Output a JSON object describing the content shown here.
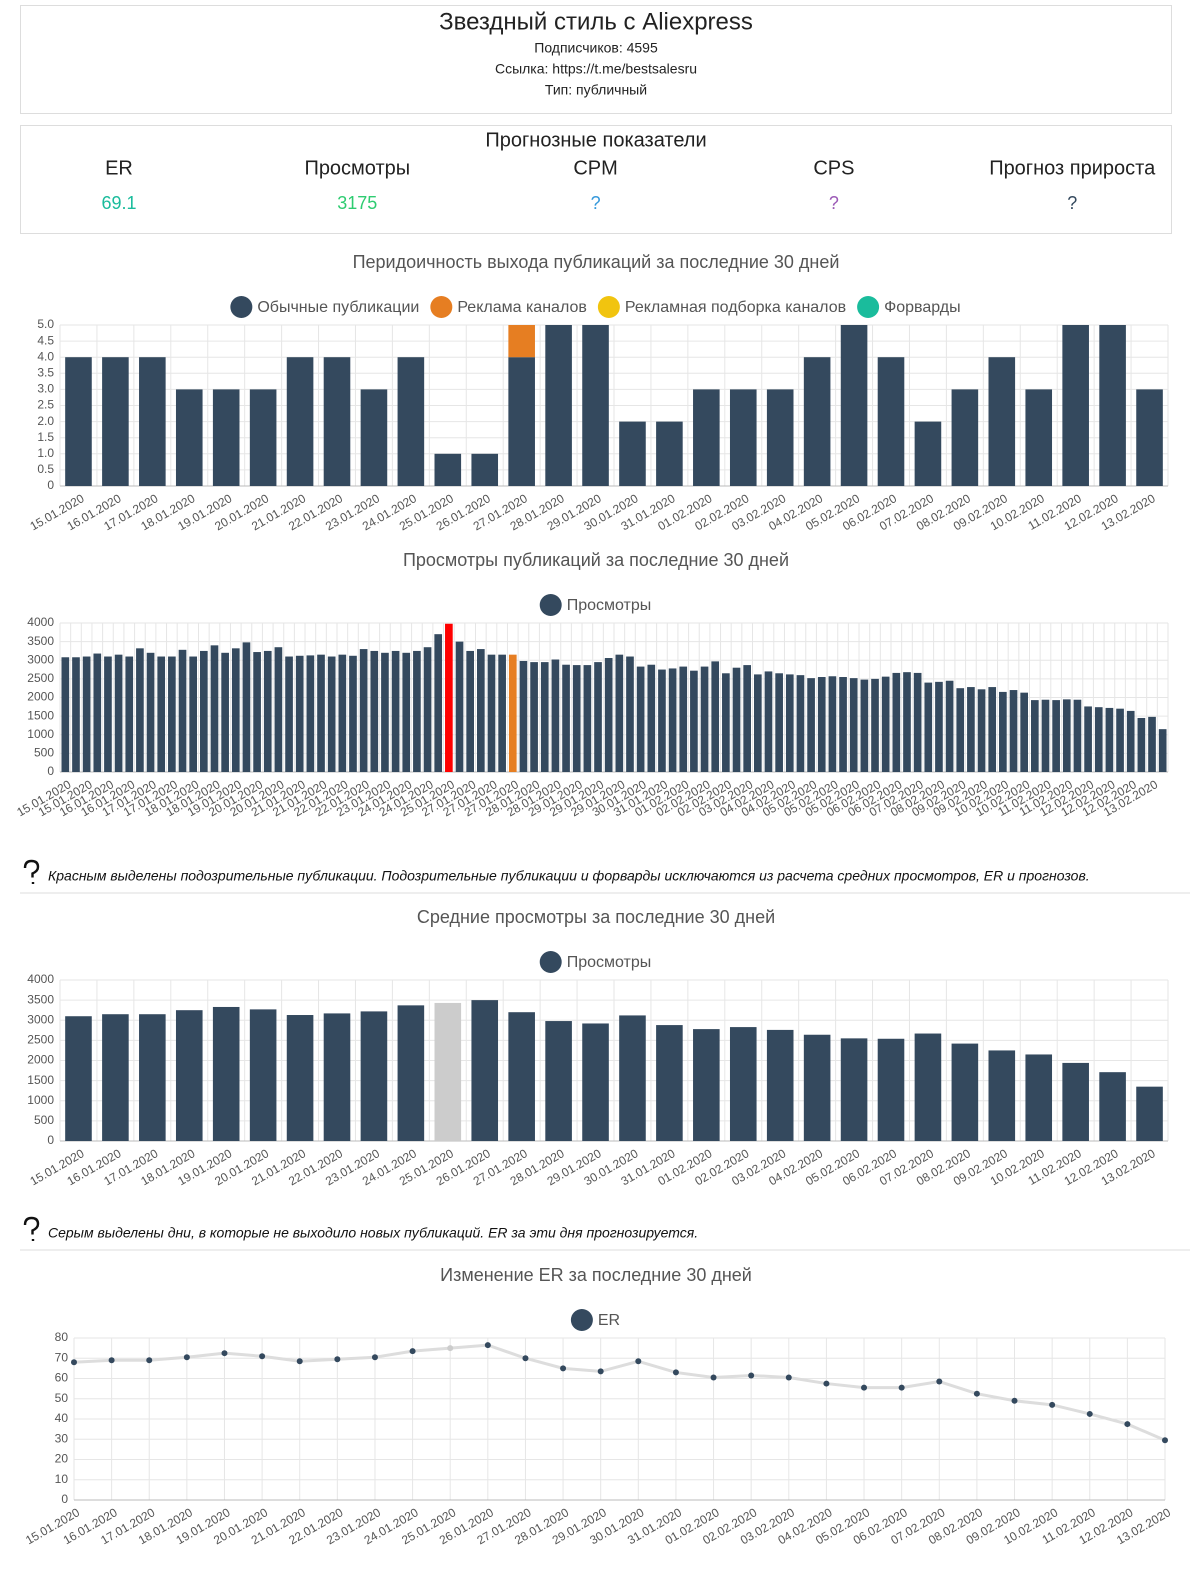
{
  "header": {
    "title": "Звездный стиль с Aliexpress",
    "subscribers": "Подписчиков: 4595",
    "link": "Ссылка: https://t.me/bestsalesru",
    "type": "Тип: публичный"
  },
  "forecast": {
    "title": "Прогнозные показатели",
    "metrics": [
      {
        "label": "ER",
        "value": "69.1",
        "color": "#1abc9c"
      },
      {
        "label": "Просмотры",
        "value": "3175",
        "color": "#2ecc71"
      },
      {
        "label": "CPM",
        "value": "?",
        "color": "#3498db"
      },
      {
        "label": "CPS",
        "value": "?",
        "color": "#9b59b6"
      },
      {
        "label": "Прогноз прироста",
        "value": "?",
        "color": "#34495e"
      }
    ]
  },
  "chart_data": [
    {
      "type": "bar",
      "stacked": true,
      "title": "Перидоичность выхода публикаций за последние 30 дней",
      "categories": [
        "15.01.2020",
        "16.01.2020",
        "17.01.2020",
        "18.01.2020",
        "19.01.2020",
        "20.01.2020",
        "21.01.2020",
        "22.01.2020",
        "23.01.2020",
        "24.01.2020",
        "25.01.2020",
        "26.01.2020",
        "27.01.2020",
        "28.01.2020",
        "29.01.2020",
        "30.01.2020",
        "31.01.2020",
        "01.02.2020",
        "02.02.2020",
        "03.02.2020",
        "04.02.2020",
        "05.02.2020",
        "06.02.2020",
        "07.02.2020",
        "08.02.2020",
        "09.02.2020",
        "10.02.2020",
        "11.02.2020",
        "12.02.2020",
        "13.02.2020"
      ],
      "series": [
        {
          "name": "Обычные публикации",
          "color": "#34495e",
          "values": [
            4,
            4,
            4,
            3,
            3,
            3,
            4,
            4,
            3,
            4,
            1,
            1,
            4,
            5,
            5,
            2,
            2,
            3,
            3,
            3,
            4,
            5,
            4,
            2,
            3,
            4,
            3,
            5,
            5,
            3
          ]
        },
        {
          "name": "Реклама каналов",
          "color": "#e67e22",
          "values": [
            0,
            0,
            0,
            0,
            0,
            0,
            0,
            0,
            0,
            0,
            0,
            0,
            1,
            0,
            0,
            0,
            0,
            0,
            0,
            0,
            0,
            0,
            0,
            0,
            0,
            0,
            0,
            0,
            0,
            0
          ]
        },
        {
          "name": "Рекламная подборка каналов",
          "color": "#f1c40f",
          "values": [
            0,
            0,
            0,
            0,
            0,
            0,
            0,
            0,
            0,
            0,
            0,
            0,
            0,
            0,
            0,
            0,
            0,
            0,
            0,
            0,
            0,
            0,
            0,
            0,
            0,
            0,
            0,
            0,
            0,
            0
          ]
        },
        {
          "name": "Форварды",
          "color": "#1abc9c",
          "values": [
            0,
            0,
            0,
            0,
            0,
            0,
            0,
            0,
            0,
            0,
            0,
            0,
            0,
            0,
            0,
            0,
            0,
            0,
            0,
            0,
            0,
            0,
            0,
            0,
            0,
            0,
            0,
            0,
            0,
            0
          ]
        }
      ],
      "ylim": [
        0,
        5
      ],
      "yticks": [
        0,
        0.5,
        {
          "value": 1,
          "label": "1.0"
        },
        1.5,
        {
          "value": 2,
          "label": "2.0"
        },
        2.5,
        {
          "value": 3,
          "label": "3.0"
        },
        3.5,
        {
          "value": 4,
          "label": "4.0"
        },
        4.5,
        {
          "value": 5,
          "label": "5.0"
        }
      ],
      "grid": true
    },
    {
      "type": "bar",
      "title": "Просмотры публикаций за последние 30 дней",
      "categories": [
        "15.01.2020",
        null,
        "15.01.2020",
        null,
        "16.01.2020",
        null,
        "16.01.2020",
        null,
        "17.01.2020",
        null,
        "17.01.2020",
        null,
        "18.01.2020",
        null,
        "18.01.2020",
        null,
        "19.01.2020",
        null,
        "20.01.2020",
        null,
        "20.01.2020",
        null,
        "21.01.2020",
        null,
        "21.01.2020",
        null,
        "22.01.2020",
        null,
        "22.01.2020",
        null,
        "23.01.2020",
        null,
        "24.01.2020",
        null,
        "24.01.2020",
        null,
        "25.01.2020",
        null,
        "27.01.2020",
        null,
        "27.01.2020",
        null,
        "27.01.2020",
        null,
        "28.01.2020",
        null,
        "28.01.2020",
        null,
        "29.01.2020",
        null,
        "29.01.2020",
        null,
        "29.01.2020",
        null,
        "30.01.2020",
        null,
        "31.01.2020",
        null,
        "01.02.2020",
        null,
        "02.02.2020",
        null,
        "02.02.2020",
        null,
        "03.02.2020",
        null,
        "04.02.2020",
        null,
        "04.02.2020",
        null,
        "05.02.2020",
        null,
        "05.02.2020",
        null,
        "05.02.2020",
        null,
        "06.02.2020",
        null,
        "06.02.2020",
        null,
        "07.02.2020",
        null,
        "08.02.2020",
        null,
        "09.02.2020",
        null,
        "09.02.2020",
        null,
        "10.02.2020",
        null,
        "10.02.2020",
        null,
        "11.02.2020",
        null,
        "11.02.2020",
        null,
        "12.02.2020",
        null,
        "12.02.2020",
        null,
        "12.02.2020",
        null,
        "13.02.2020",
        null
      ],
      "series": [
        {
          "name": "Просмотры",
          "color": "#34495e",
          "values": [
            3080,
            3080,
            3100,
            3180,
            3100,
            3150,
            3100,
            3320,
            3200,
            3100,
            3100,
            3280,
            3100,
            3250,
            3400,
            3200,
            3320,
            3480,
            3220,
            3250,
            3350,
            3100,
            3120,
            3130,
            3150,
            3100,
            3150,
            3120,
            3300,
            3250,
            3200,
            3250,
            3200,
            3250,
            3350,
            3700,
            3980,
            3500,
            3250,
            3300,
            3150,
            3150,
            3150,
            2980,
            2950,
            2950,
            3020,
            2880,
            2870,
            2870,
            2950,
            3060,
            3150,
            3100,
            2830,
            2880,
            2750,
            2780,
            2830,
            2720,
            2830,
            2970,
            2650,
            2800,
            2870,
            2620,
            2700,
            2650,
            2620,
            2600,
            2520,
            2550,
            2570,
            2550,
            2520,
            2480,
            2500,
            2560,
            2660,
            2680,
            2660,
            2400,
            2420,
            2450,
            2250,
            2280,
            2220,
            2280,
            2150,
            2200,
            2130,
            1930,
            1940,
            1930,
            1950,
            1940,
            1760,
            1740,
            1720,
            1700,
            1640,
            1450,
            1480,
            1150
          ]
        }
      ],
      "color_overrides": {
        "36": "#ff0000",
        "42": "#e67e22"
      },
      "ylim": [
        0,
        4000
      ],
      "yticks": [
        0,
        500,
        1000,
        1500,
        2000,
        2500,
        3000,
        3500,
        4000
      ],
      "grid": true,
      "note": "Красным выделены подозрительные публикации. Подозрительные публикации и форварды исключаются из расчета средних просмотров, ER и прогнозов."
    },
    {
      "type": "bar",
      "title": "Средние просмотры за последние 30 дней",
      "categories": [
        "15.01.2020",
        "16.01.2020",
        "17.01.2020",
        "18.01.2020",
        "19.01.2020",
        "20.01.2020",
        "21.01.2020",
        "22.01.2020",
        "23.01.2020",
        "24.01.2020",
        "25.01.2020",
        "26.01.2020",
        "27.01.2020",
        "28.01.2020",
        "29.01.2020",
        "30.01.2020",
        "31.01.2020",
        "01.02.2020",
        "02.02.2020",
        "03.02.2020",
        "04.02.2020",
        "05.02.2020",
        "06.02.2020",
        "07.02.2020",
        "08.02.2020",
        "09.02.2020",
        "10.02.2020",
        "11.02.2020",
        "12.02.2020",
        "13.02.2020"
      ],
      "series": [
        {
          "name": "Просмотры",
          "color": "#34495e",
          "values": [
            3100,
            3150,
            3150,
            3250,
            3330,
            3270,
            3130,
            3170,
            3220,
            3370,
            3430,
            3500,
            3200,
            2980,
            2920,
            3120,
            2880,
            2780,
            2830,
            2760,
            2640,
            2550,
            2540,
            2670,
            2420,
            2250,
            2150,
            1940,
            1710,
            1350
          ]
        }
      ],
      "color_overrides": {
        "10": "#cccccc"
      },
      "ylim": [
        0,
        4000
      ],
      "yticks": [
        0,
        500,
        1000,
        1500,
        2000,
        2500,
        3000,
        3500,
        4000
      ],
      "grid": true,
      "note": "Серым выделены дни, в которые не выходило новых публикаций. ER за эти дня прогнозируется."
    },
    {
      "type": "line",
      "title": "Изменение ER за последние 30 дней",
      "categories": [
        "15.01.2020",
        "16.01.2020",
        "17.01.2020",
        "18.01.2020",
        "19.01.2020",
        "20.01.2020",
        "21.01.2020",
        "22.01.2020",
        "23.01.2020",
        "24.01.2020",
        "25.01.2020",
        "26.01.2020",
        "27.01.2020",
        "28.01.2020",
        "29.01.2020",
        "30.01.2020",
        "31.01.2020",
        "01.02.2020",
        "02.02.2020",
        "03.02.2020",
        "04.02.2020",
        "05.02.2020",
        "06.02.2020",
        "07.02.2020",
        "08.02.2020",
        "09.02.2020",
        "10.02.2020",
        "11.02.2020",
        "12.02.2020",
        "13.02.2020"
      ],
      "series": [
        {
          "name": "ER",
          "color": "#34495e",
          "values": [
            68,
            69,
            69,
            70.5,
            72.5,
            71,
            68.5,
            69.5,
            70.5,
            73.5,
            75,
            76.5,
            70,
            65,
            63.5,
            68.5,
            63,
            60.5,
            61.5,
            60.5,
            57.5,
            55.5,
            55.5,
            58.5,
            52.5,
            49,
            47,
            42.5,
            37.5,
            29.5
          ]
        }
      ],
      "line_color": "#dddddd",
      "color_overrides": {
        "10": "#cccccc"
      },
      "ylim": [
        0,
        80
      ],
      "yticks": [
        0,
        10,
        20,
        30,
        40,
        50,
        60,
        70,
        80
      ],
      "grid": true
    }
  ]
}
